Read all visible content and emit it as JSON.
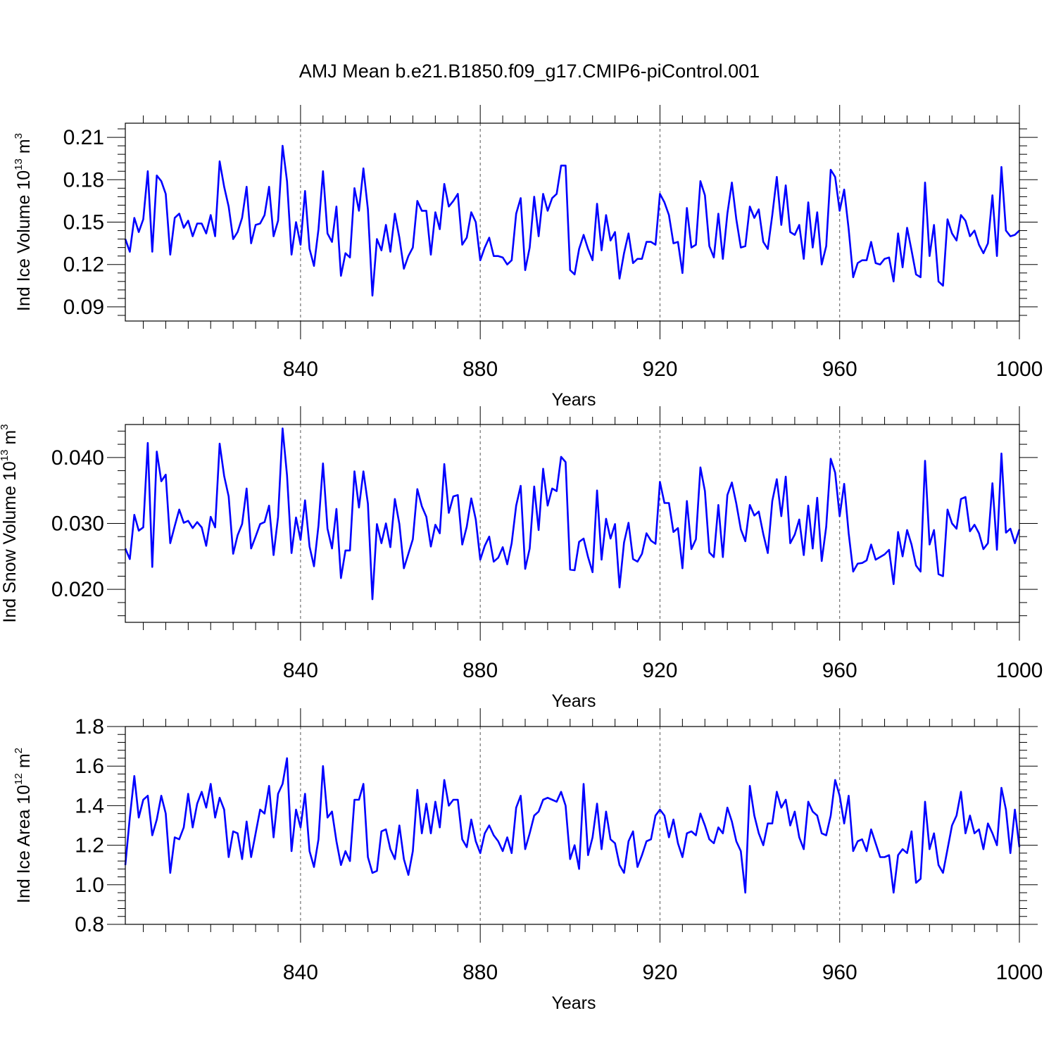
{
  "title": "AMJ Mean b.e21.B1850.f09_g17.CMIP6-piControl.001",
  "colors": {
    "series": "#0000ff",
    "frame": "#000000",
    "grid": "#555555"
  },
  "chart_data": [
    {
      "type": "line",
      "xlabel": "Years",
      "ylabel": {
        "base": "Ind Ice Volume 10",
        "exp": "13",
        "unit": " m",
        "unit_exp": "3"
      },
      "xlim": [
        801,
        1000
      ],
      "ylim": [
        0.08,
        0.22
      ],
      "x_ticks": [
        840,
        880,
        920,
        960,
        1000
      ],
      "x_tick_labels": [
        "840",
        "880",
        "920",
        "960",
        "1000"
      ],
      "y_ticks": [
        0.09,
        0.12,
        0.15,
        0.18,
        0.21
      ],
      "y_tick_labels": [
        "0.09",
        "0.12",
        "0.15",
        "0.18",
        "0.21"
      ],
      "grid": "vertical dashed at major x ticks",
      "x_start": 801,
      "series": [
        {
          "values": [
            0.138,
            0.129,
            0.153,
            0.143,
            0.152,
            0.186,
            0.129,
            0.183,
            0.179,
            0.17,
            0.127,
            0.153,
            0.156,
            0.146,
            0.151,
            0.14,
            0.149,
            0.149,
            0.142,
            0.155,
            0.14,
            0.193,
            0.175,
            0.161,
            0.138,
            0.143,
            0.153,
            0.175,
            0.135,
            0.148,
            0.149,
            0.155,
            0.175,
            0.14,
            0.151,
            0.204,
            0.179,
            0.127,
            0.15,
            0.134,
            0.172,
            0.131,
            0.119,
            0.145,
            0.186,
            0.142,
            0.136,
            0.161,
            0.112,
            0.128,
            0.125,
            0.174,
            0.158,
            0.188,
            0.159,
            0.098,
            0.138,
            0.13,
            0.148,
            0.129,
            0.156,
            0.139,
            0.117,
            0.126,
            0.132,
            0.165,
            0.158,
            0.158,
            0.127,
            0.157,
            0.145,
            0.177,
            0.161,
            0.165,
            0.17,
            0.134,
            0.139,
            0.157,
            0.15,
            0.123,
            0.132,
            0.139,
            0.126,
            0.126,
            0.125,
            0.12,
            0.123,
            0.156,
            0.167,
            0.116,
            0.132,
            0.168,
            0.14,
            0.17,
            0.158,
            0.167,
            0.17,
            0.19,
            0.19,
            0.116,
            0.113,
            0.131,
            0.141,
            0.131,
            0.123,
            0.163,
            0.13,
            0.155,
            0.137,
            0.143,
            0.11,
            0.128,
            0.142,
            0.121,
            0.124,
            0.124,
            0.136,
            0.136,
            0.134,
            0.17,
            0.164,
            0.155,
            0.135,
            0.136,
            0.114,
            0.16,
            0.132,
            0.134,
            0.179,
            0.169,
            0.133,
            0.125,
            0.156,
            0.124,
            0.156,
            0.178,
            0.152,
            0.132,
            0.133,
            0.161,
            0.153,
            0.159,
            0.136,
            0.131,
            0.155,
            0.182,
            0.148,
            0.176,
            0.143,
            0.141,
            0.148,
            0.124,
            0.164,
            0.132,
            0.157,
            0.12,
            0.133,
            0.187,
            0.182,
            0.158,
            0.173,
            0.145,
            0.111,
            0.121,
            0.123,
            0.123,
            0.136,
            0.121,
            0.12,
            0.124,
            0.125,
            0.108,
            0.142,
            0.118,
            0.146,
            0.13,
            0.113,
            0.111,
            0.178,
            0.126,
            0.148,
            0.108,
            0.105,
            0.152,
            0.142,
            0.137,
            0.155,
            0.151,
            0.14,
            0.144,
            0.134,
            0.128,
            0.135,
            0.169,
            0.126,
            0.189,
            0.144,
            0.14,
            0.141,
            0.144
          ]
        }
      ]
    },
    {
      "type": "line",
      "xlabel": "Years",
      "ylabel": {
        "base": "Ind Snow Volume 10",
        "exp": "13",
        "unit": " m",
        "unit_exp": "3"
      },
      "xlim": [
        801,
        1000
      ],
      "ylim": [
        0.015,
        0.045
      ],
      "x_ticks": [
        840,
        880,
        920,
        960,
        1000
      ],
      "x_tick_labels": [
        "840",
        "880",
        "920",
        "960",
        "1000"
      ],
      "y_ticks": [
        0.02,
        0.03,
        0.04
      ],
      "y_tick_labels": [
        "0.020",
        "0.030",
        "0.040"
      ],
      "grid": "vertical dashed at major x ticks",
      "x_start": 801,
      "series": [
        {
          "values": [
            0.0262,
            0.0246,
            0.0313,
            0.0289,
            0.0294,
            0.0422,
            0.0234,
            0.0409,
            0.0364,
            0.0374,
            0.027,
            0.0296,
            0.0321,
            0.0301,
            0.0304,
            0.0293,
            0.0302,
            0.0294,
            0.0266,
            0.031,
            0.0294,
            0.0421,
            0.0372,
            0.0341,
            0.0254,
            0.0282,
            0.0299,
            0.0353,
            0.0262,
            0.028,
            0.0299,
            0.0302,
            0.0327,
            0.0252,
            0.031,
            0.0444,
            0.0373,
            0.0255,
            0.0309,
            0.0275,
            0.0335,
            0.0265,
            0.0235,
            0.0297,
            0.0391,
            0.0292,
            0.0262,
            0.0322,
            0.0217,
            0.0259,
            0.0259,
            0.0379,
            0.0324,
            0.0379,
            0.033,
            0.0185,
            0.0299,
            0.027,
            0.03,
            0.0264,
            0.0337,
            0.0299,
            0.0232,
            0.0254,
            0.0276,
            0.0352,
            0.0326,
            0.031,
            0.0265,
            0.0298,
            0.0285,
            0.039,
            0.0316,
            0.0341,
            0.0343,
            0.0268,
            0.0295,
            0.0338,
            0.0306,
            0.0245,
            0.0266,
            0.028,
            0.0242,
            0.0248,
            0.0264,
            0.0238,
            0.027,
            0.0327,
            0.0357,
            0.0231,
            0.0262,
            0.0356,
            0.029,
            0.0383,
            0.0327,
            0.0353,
            0.0349,
            0.0401,
            0.0393,
            0.023,
            0.0229,
            0.0272,
            0.0277,
            0.0249,
            0.0226,
            0.035,
            0.0245,
            0.0307,
            0.0277,
            0.0299,
            0.0203,
            0.0271,
            0.0301,
            0.0246,
            0.0242,
            0.0254,
            0.0285,
            0.0274,
            0.0269,
            0.0363,
            0.0331,
            0.0331,
            0.0287,
            0.0293,
            0.0232,
            0.0334,
            0.0261,
            0.0276,
            0.0385,
            0.0349,
            0.0256,
            0.0249,
            0.0328,
            0.0249,
            0.0343,
            0.0362,
            0.033,
            0.0291,
            0.0273,
            0.0328,
            0.0312,
            0.0318,
            0.0284,
            0.0255,
            0.0334,
            0.0367,
            0.0311,
            0.0371,
            0.027,
            0.0283,
            0.0306,
            0.0252,
            0.0327,
            0.0262,
            0.0339,
            0.0243,
            0.0295,
            0.0398,
            0.0377,
            0.0311,
            0.036,
            0.0285,
            0.0227,
            0.0239,
            0.024,
            0.0244,
            0.0268,
            0.0245,
            0.0249,
            0.0253,
            0.026,
            0.0208,
            0.0287,
            0.025,
            0.029,
            0.0268,
            0.0236,
            0.0227,
            0.0395,
            0.0268,
            0.029,
            0.0223,
            0.022,
            0.0321,
            0.03,
            0.0292,
            0.0337,
            0.034,
            0.0288,
            0.0298,
            0.0285,
            0.0261,
            0.027,
            0.0361,
            0.026,
            0.0406,
            0.0286,
            0.0292,
            0.027,
            0.0291
          ]
        }
      ]
    },
    {
      "type": "line",
      "xlabel": "Years",
      "ylabel": {
        "base": "Ind Ice Area 10",
        "exp": "12",
        "unit": " m",
        "unit_exp": "2"
      },
      "xlim": [
        801,
        1000
      ],
      "ylim": [
        0.8,
        1.8
      ],
      "x_ticks": [
        840,
        880,
        920,
        960,
        1000
      ],
      "x_tick_labels": [
        "840",
        "880",
        "920",
        "960",
        "1000"
      ],
      "y_ticks": [
        0.8,
        1.0,
        1.2,
        1.4,
        1.6,
        1.8
      ],
      "y_tick_labels": [
        "0.8",
        "1.0",
        "1.2",
        "1.4",
        "1.6",
        "1.8"
      ],
      "grid": "vertical dashed at major x ticks",
      "x_start": 801,
      "series": [
        {
          "values": [
            1.1,
            1.34,
            1.55,
            1.34,
            1.43,
            1.45,
            1.25,
            1.33,
            1.45,
            1.36,
            1.06,
            1.24,
            1.23,
            1.29,
            1.46,
            1.29,
            1.41,
            1.47,
            1.39,
            1.51,
            1.34,
            1.44,
            1.38,
            1.14,
            1.27,
            1.26,
            1.13,
            1.32,
            1.14,
            1.26,
            1.38,
            1.36,
            1.5,
            1.24,
            1.46,
            1.51,
            1.64,
            1.17,
            1.38,
            1.29,
            1.46,
            1.17,
            1.09,
            1.23,
            1.6,
            1.34,
            1.37,
            1.22,
            1.1,
            1.17,
            1.12,
            1.43,
            1.43,
            1.51,
            1.14,
            1.06,
            1.07,
            1.27,
            1.28,
            1.18,
            1.13,
            1.3,
            1.13,
            1.05,
            1.17,
            1.48,
            1.26,
            1.41,
            1.26,
            1.42,
            1.29,
            1.53,
            1.4,
            1.43,
            1.43,
            1.23,
            1.19,
            1.33,
            1.22,
            1.16,
            1.26,
            1.3,
            1.25,
            1.22,
            1.17,
            1.24,
            1.16,
            1.39,
            1.45,
            1.18,
            1.26,
            1.35,
            1.37,
            1.43,
            1.44,
            1.43,
            1.42,
            1.47,
            1.4,
            1.13,
            1.2,
            1.08,
            1.51,
            1.15,
            1.24,
            1.41,
            1.18,
            1.37,
            1.23,
            1.21,
            1.1,
            1.06,
            1.22,
            1.27,
            1.09,
            1.15,
            1.22,
            1.23,
            1.35,
            1.38,
            1.35,
            1.24,
            1.33,
            1.21,
            1.14,
            1.26,
            1.27,
            1.25,
            1.36,
            1.3,
            1.23,
            1.21,
            1.29,
            1.26,
            1.39,
            1.32,
            1.22,
            1.17,
            0.96,
            1.5,
            1.35,
            1.26,
            1.2,
            1.31,
            1.31,
            1.47,
            1.39,
            1.43,
            1.3,
            1.37,
            1.24,
            1.18,
            1.42,
            1.37,
            1.35,
            1.26,
            1.25,
            1.35,
            1.53,
            1.45,
            1.31,
            1.45,
            1.17,
            1.22,
            1.23,
            1.17,
            1.28,
            1.21,
            1.14,
            1.14,
            1.15,
            0.96,
            1.15,
            1.18,
            1.16,
            1.27,
            1.01,
            1.03,
            1.42,
            1.18,
            1.26,
            1.1,
            1.06,
            1.18,
            1.3,
            1.35,
            1.47,
            1.26,
            1.35,
            1.26,
            1.28,
            1.18,
            1.31,
            1.26,
            1.2,
            1.49,
            1.38,
            1.16,
            1.38,
            1.19
          ]
        }
      ]
    }
  ]
}
